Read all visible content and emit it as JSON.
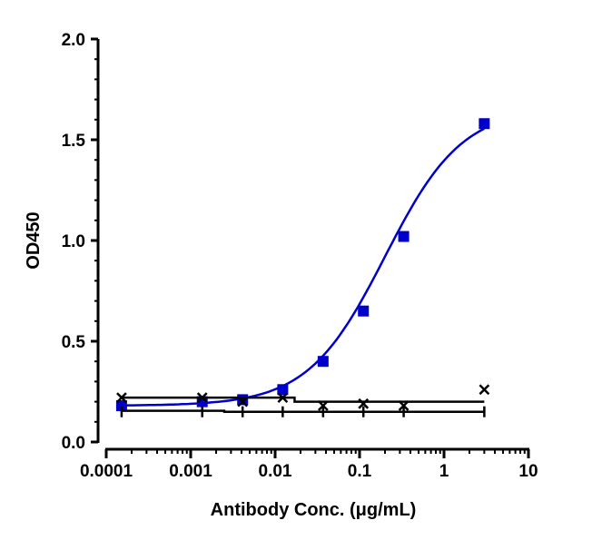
{
  "chart_data": {
    "type": "scatter",
    "title": "",
    "xlabel": "Antibody Conc. (μg/mL)",
    "ylabel": "OD450",
    "x_scale": "log",
    "xlim": [
      0.0001,
      10
    ],
    "ylim": [
      0,
      2.0
    ],
    "x_ticks": [
      0.0001,
      0.001,
      0.01,
      0.1,
      1,
      10
    ],
    "x_tick_labels": [
      "0.0001",
      "0.001",
      "0.01",
      "0.1",
      "1",
      "10"
    ],
    "y_ticks": [
      0,
      0.5,
      1.0,
      1.5,
      2.0
    ],
    "y_tick_labels": [
      "0.0",
      "0.5",
      "1.0",
      "1.5",
      "2.0"
    ],
    "grid": false,
    "legend": "none",
    "series": [
      {
        "marker": "square",
        "color": "#0000cc",
        "fit": "sigmoidal",
        "x": [
          0.000152,
          0.00137,
          0.00412,
          0.0123,
          0.037,
          0.111,
          0.333,
          3.0
        ],
        "y": [
          0.18,
          0.2,
          0.21,
          0.26,
          0.4,
          0.65,
          1.02,
          1.58
        ]
      },
      {
        "marker": "x",
        "color": "#000000",
        "fit": "step",
        "x": [
          0.000152,
          0.00137,
          0.00412,
          0.0123,
          0.037,
          0.111,
          0.333,
          3.0
        ],
        "y": [
          0.22,
          0.22,
          0.2,
          0.22,
          0.18,
          0.19,
          0.18,
          0.26
        ]
      },
      {
        "marker": "tick",
        "color": "#000000",
        "fit": "step",
        "x": [
          0.000152,
          0.00137,
          0.00412,
          0.0123,
          0.037,
          0.111,
          0.333,
          3.0
        ],
        "y": [
          0.15,
          0.15,
          0.15,
          0.15,
          0.15,
          0.15,
          0.15,
          0.15
        ]
      }
    ]
  }
}
